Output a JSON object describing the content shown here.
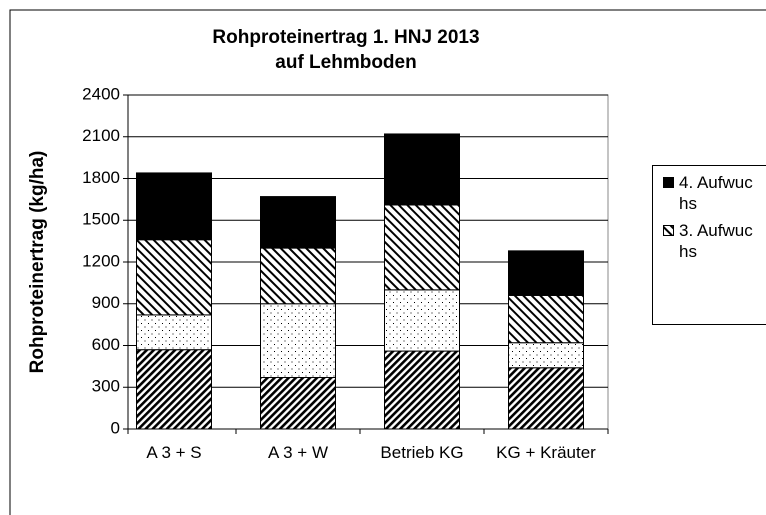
{
  "chart_data": {
    "type": "stacked-bar",
    "title": "Rohproteinertrag 1. HNJ 2013",
    "subtitle": "auf Lehmboden",
    "y_label": "Rohproteinertrag (kg/ha)",
    "categories": [
      "A 3 + S",
      "A 3 + W",
      "Betrieb KG",
      "KG + Kräuter"
    ],
    "series": [
      {
        "pattern": "dense-hatch",
        "color": "#000000",
        "values": [
          570,
          370,
          560,
          440
        ]
      },
      {
        "pattern": "dots",
        "color": "#000000",
        "values": [
          250,
          530,
          440,
          180
        ]
      },
      {
        "name": "3. Aufwuchs",
        "pattern": "hatch",
        "color": "#000000",
        "values": [
          540,
          400,
          610,
          340
        ]
      },
      {
        "name": "4. Aufwuchs",
        "pattern": "solid",
        "color": "#000000",
        "values": [
          480,
          370,
          510,
          320
        ]
      }
    ],
    "ylim": [
      0,
      2400
    ],
    "yticks": [
      0,
      300,
      600,
      900,
      1200,
      1500,
      1800,
      2100,
      2400
    ],
    "grid": true,
    "legend": "right"
  }
}
